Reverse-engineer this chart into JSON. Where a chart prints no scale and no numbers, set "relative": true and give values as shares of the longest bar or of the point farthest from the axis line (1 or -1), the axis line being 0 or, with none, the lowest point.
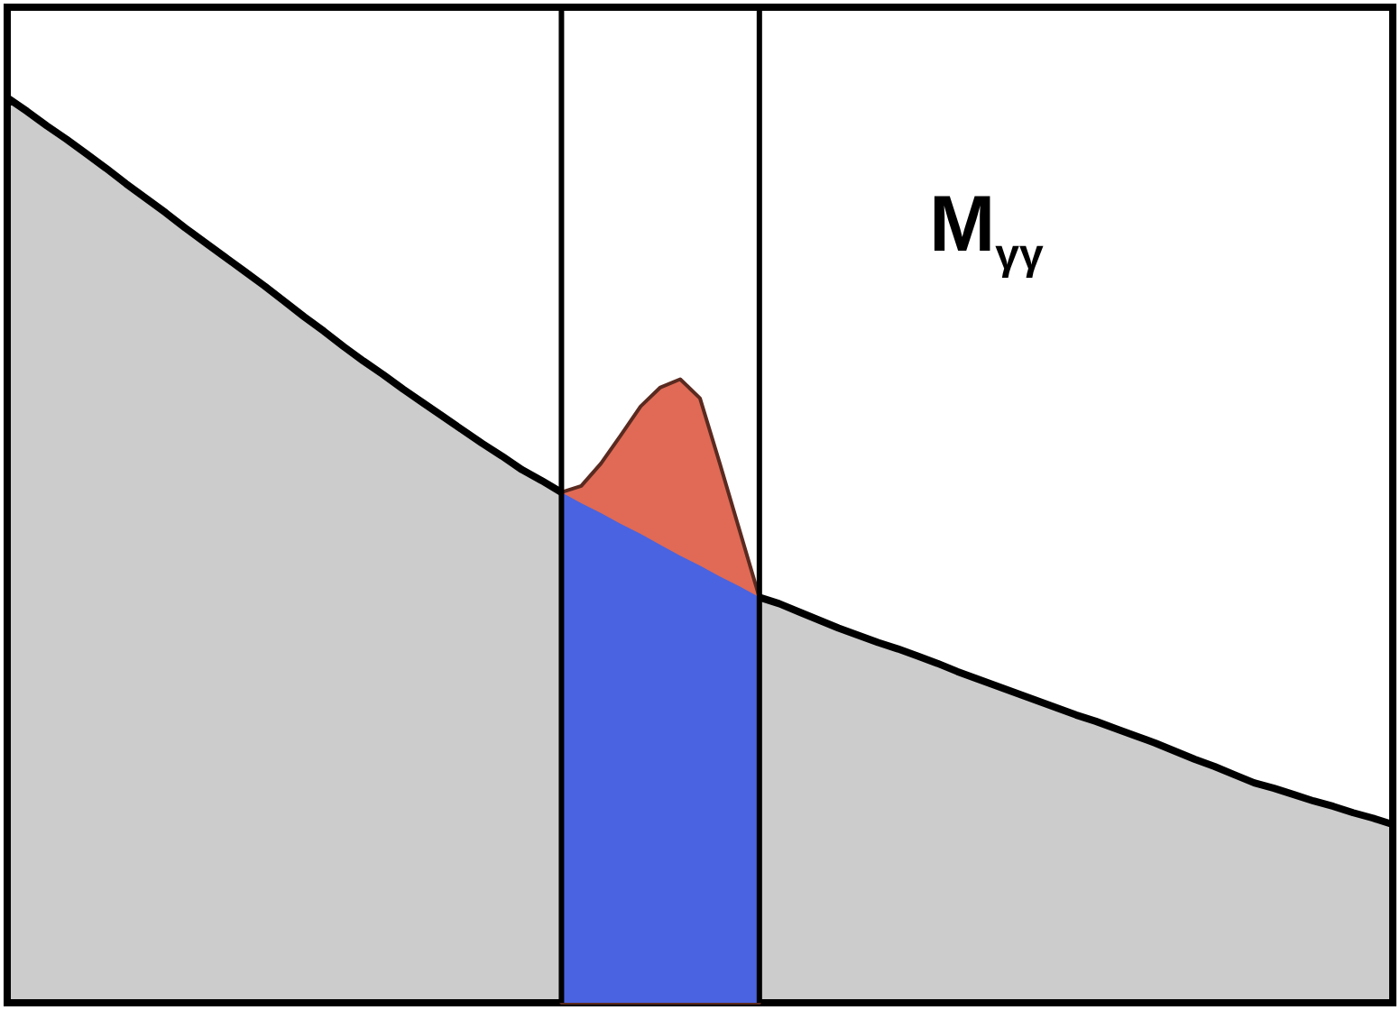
{
  "chart_data": {
    "type": "area",
    "relative": true,
    "tick_labels": false,
    "annotations": [
      "M$_{γγ}$"
    ],
    "categories": [
      null,
      null,
      null,
      null,
      null,
      null,
      null,
      null,
      null,
      null,
      null,
      null,
      null,
      null,
      null,
      null,
      null,
      null,
      null,
      null,
      null,
      null,
      null,
      null,
      null,
      null,
      null,
      null,
      null,
      null,
      null,
      null,
      null,
      null,
      null,
      null,
      null,
      null,
      null,
      null,
      null,
      null,
      null,
      null,
      null,
      null,
      null,
      null,
      null,
      null,
      null,
      null,
      null,
      null,
      null,
      null,
      null,
      null,
      null,
      null,
      null,
      null,
      null,
      null,
      null,
      null,
      null,
      null,
      null,
      null,
      null
    ],
    "series": [
      {
        "color": "#cccccc",
        "line_style": "solid",
        "values": [
          1,
          0.985,
          0.969,
          0.954,
          0.938,
          0.922,
          0.905,
          0.889,
          0.873,
          0.856,
          0.84,
          0.824,
          0.808,
          0.792,
          0.775,
          0.758,
          0.742,
          0.725,
          0.709,
          0.694,
          0.678,
          0.663,
          0.648,
          0.633,
          0.618,
          0.604,
          0.589,
          0.577,
          0.564,
          null,
          null,
          null,
          null,
          null,
          null,
          null,
          null,
          null,
          0.448,
          0.441,
          0.432,
          0.423,
          0.414,
          0.406,
          0.398,
          0.391,
          0.383,
          0.375,
          0.366,
          0.358,
          0.35,
          0.342,
          0.334,
          0.326,
          0.318,
          0.311,
          0.303,
          0.295,
          0.287,
          0.278,
          0.269,
          0.261,
          0.252,
          0.243,
          0.237,
          0.23,
          0.223,
          0.217,
          0.21,
          0.204,
          0.197
        ]
      },
      {
        "color": "#e06a55",
        "line_style": "solid",
        "values": [
          null,
          null,
          null,
          null,
          null,
          null,
          null,
          null,
          null,
          null,
          null,
          null,
          null,
          null,
          null,
          null,
          null,
          null,
          null,
          null,
          null,
          null,
          null,
          null,
          null,
          null,
          null,
          null,
          0.564,
          0.571,
          0.596,
          0.627,
          0.659,
          0.68,
          0.689,
          0.668,
          0.596,
          null,
          0.448,
          null,
          null,
          null,
          null,
          null,
          null,
          null,
          null,
          null,
          null,
          null,
          null,
          null,
          null,
          null,
          null,
          null,
          null,
          null,
          null,
          null,
          null,
          null,
          null,
          null,
          null,
          null,
          null,
          null,
          null,
          null,
          null
        ]
      },
      {
        "color": "#4a63e0",
        "values": [
          null,
          null,
          null,
          null,
          null,
          null,
          null,
          null,
          null,
          null,
          null,
          null,
          null,
          null,
          null,
          null,
          null,
          null,
          null,
          null,
          null,
          null,
          null,
          null,
          null,
          null,
          null,
          null,
          0.564,
          0.552,
          0.541,
          0.529,
          0.518,
          0.506,
          0.494,
          0.483,
          0.471,
          0.46,
          0.448,
          null,
          null,
          null,
          null,
          null,
          null,
          null,
          null,
          null,
          null,
          null,
          null,
          null,
          null,
          null,
          null,
          null,
          null,
          null,
          null,
          null,
          null,
          null,
          null,
          null,
          null,
          null,
          null,
          null,
          null,
          null,
          null
        ]
      }
    ]
  }
}
